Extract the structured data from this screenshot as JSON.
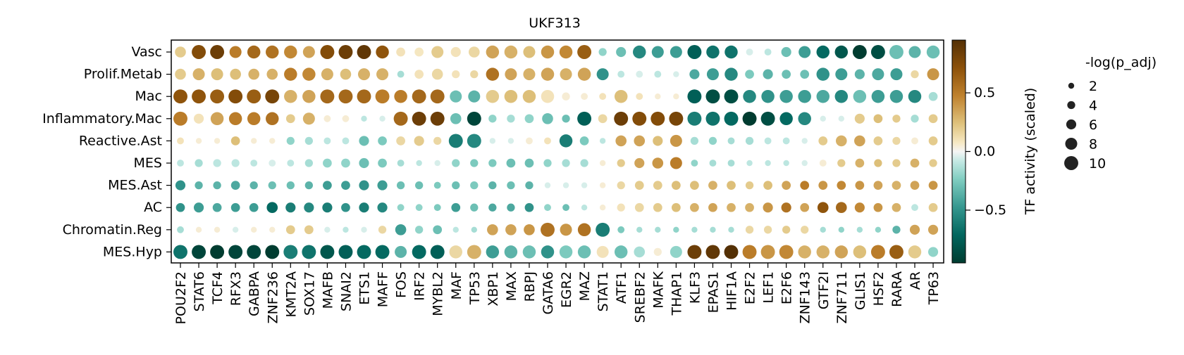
{
  "chart_data": {
    "type": "dotplot",
    "title": "UKF313",
    "rows": [
      "Vasc",
      "Prolif.Metab",
      "Mac",
      "Inflammatory.Mac",
      "Reactive.Ast",
      "MES",
      "MES.Ast",
      "AC",
      "Chromatin.Reg",
      "MES.Hyp"
    ],
    "columns": [
      "POU2F2",
      "STAT6",
      "TCF4",
      "RFX3",
      "GABPA",
      "ZNF236",
      "KMT2A",
      "SOX17",
      "MAFB",
      "SNAI2",
      "ETS1",
      "MAFF",
      "FOS",
      "IRF2",
      "MYBL2",
      "MAF",
      "TP53",
      "XBP1",
      "MAX",
      "RBPJ",
      "GATA6",
      "EGR2",
      "MAZ",
      "STAT1",
      "ATF1",
      "SREBF2",
      "MAFK",
      "THAP1",
      "KLF3",
      "EPAS1",
      "HIF1A",
      "E2F2",
      "LEF1",
      "E2F6",
      "ZNF143",
      "GTF2I",
      "ZNF711",
      "GLIS1",
      "HSF2",
      "RARA",
      "AR",
      "TP63"
    ],
    "activity": [
      [
        0.2,
        0.75,
        0.85,
        0.5,
        0.6,
        0.55,
        0.45,
        0.35,
        0.75,
        0.85,
        0.9,
        0.7,
        0.1,
        0.08,
        0.2,
        0.1,
        0.15,
        0.35,
        0.3,
        0.25,
        0.4,
        0.45,
        0.65,
        -0.2,
        -0.3,
        -0.55,
        -0.45,
        -0.45,
        -0.75,
        -0.65,
        -0.65,
        -0.05,
        -0.1,
        -0.3,
        -0.45,
        -0.7,
        -0.8,
        -0.95,
        -0.85,
        -0.3,
        -0.35,
        -0.3
      ],
      [
        0.2,
        0.3,
        0.25,
        0.25,
        0.3,
        0.3,
        0.5,
        0.45,
        0.3,
        0.25,
        0.3,
        0.3,
        -0.15,
        0.1,
        0.15,
        0.1,
        0.15,
        0.55,
        0.35,
        0.3,
        0.35,
        0.3,
        0.35,
        -0.5,
        -0.1,
        -0.05,
        -0.1,
        -0.05,
        -0.4,
        -0.45,
        -0.55,
        -0.25,
        -0.35,
        -0.3,
        -0.3,
        -0.5,
        -0.45,
        -0.35,
        -0.4,
        -0.45,
        0.15,
        0.4
      ],
      [
        0.7,
        0.7,
        0.65,
        0.75,
        0.65,
        0.8,
        0.3,
        0.35,
        0.6,
        0.6,
        0.6,
        0.5,
        0.5,
        0.6,
        0.6,
        -0.3,
        -0.35,
        0.2,
        0.25,
        0.25,
        0.1,
        0.05,
        0.05,
        0.1,
        0.25,
        0.1,
        0.05,
        0.05,
        -0.75,
        -0.85,
        -0.85,
        -0.55,
        -0.5,
        -0.45,
        -0.45,
        -0.4,
        -0.55,
        -0.3,
        -0.45,
        -0.45,
        -0.55,
        -0.15
      ],
      [
        0.5,
        0.1,
        0.35,
        0.5,
        0.5,
        0.55,
        0.2,
        0.3,
        0.05,
        0.05,
        -0.1,
        -0.05,
        0.6,
        0.85,
        0.85,
        -0.3,
        -0.9,
        -0.2,
        -0.15,
        -0.2,
        -0.3,
        -0.3,
        -0.75,
        0.15,
        0.85,
        0.75,
        0.75,
        0.8,
        -0.6,
        -0.65,
        -0.7,
        -0.95,
        -0.85,
        -0.7,
        -0.55,
        -0.05,
        -0.05,
        0.2,
        0.25,
        0.2,
        -0.15,
        0.2
      ],
      [
        0.1,
        0.05,
        0.05,
        0.25,
        0.05,
        0.05,
        -0.2,
        -0.15,
        -0.1,
        -0.1,
        -0.3,
        -0.25,
        0.15,
        0.2,
        0.15,
        -0.6,
        -0.55,
        -0.05,
        -0.05,
        0.05,
        0.1,
        -0.6,
        -0.25,
        -0.1,
        0.35,
        0.35,
        0.25,
        0.4,
        -0.15,
        -0.2,
        -0.15,
        -0.15,
        -0.1,
        -0.1,
        -0.05,
        0.2,
        0.3,
        0.35,
        0.2,
        0.15,
        0.05,
        0.2
      ],
      [
        -0.1,
        -0.15,
        -0.1,
        -0.1,
        -0.1,
        -0.05,
        -0.1,
        -0.15,
        -0.2,
        -0.2,
        -0.3,
        -0.25,
        -0.15,
        -0.1,
        -0.05,
        -0.2,
        -0.25,
        -0.25,
        -0.3,
        -0.3,
        -0.2,
        -0.15,
        -0.15,
        0.05,
        0.2,
        0.35,
        0.4,
        0.5,
        -0.2,
        -0.15,
        -0.15,
        -0.1,
        -0.1,
        -0.1,
        -0.05,
        0.05,
        0.2,
        0.3,
        0.25,
        0.2,
        0.3,
        0.2
      ],
      [
        -0.5,
        -0.35,
        -0.35,
        -0.4,
        -0.35,
        -0.3,
        -0.3,
        -0.35,
        -0.45,
        -0.45,
        -0.5,
        -0.45,
        -0.3,
        -0.3,
        -0.25,
        -0.3,
        -0.25,
        -0.35,
        -0.3,
        -0.35,
        -0.05,
        -0.05,
        -0.05,
        0.05,
        0.15,
        0.2,
        0.2,
        0.25,
        0.25,
        0.3,
        0.25,
        0.2,
        0.25,
        0.35,
        0.5,
        0.4,
        0.45,
        0.4,
        0.35,
        0.3,
        0.35,
        0.4
      ],
      [
        -0.5,
        -0.45,
        -0.4,
        -0.45,
        -0.45,
        -0.7,
        -0.6,
        -0.55,
        -0.6,
        -0.5,
        -0.6,
        -0.55,
        -0.2,
        -0.2,
        -0.25,
        -0.45,
        -0.3,
        -0.4,
        -0.4,
        -0.5,
        -0.2,
        -0.3,
        -0.1,
        0.05,
        0.1,
        0.15,
        0.2,
        0.25,
        0.3,
        0.35,
        0.3,
        0.3,
        0.4,
        0.55,
        0.35,
        0.7,
        0.6,
        0.45,
        0.4,
        0.3,
        -0.1,
        0.2
      ],
      [
        -0.15,
        0.05,
        0.05,
        -0.05,
        0.05,
        0.05,
        0.2,
        0.2,
        -0.05,
        -0.1,
        -0.05,
        0.15,
        -0.45,
        -0.2,
        -0.3,
        -0.1,
        -0.15,
        0.35,
        0.35,
        0.4,
        0.55,
        0.4,
        0.55,
        -0.6,
        -0.25,
        -0.15,
        -0.15,
        -0.2,
        -0.15,
        -0.15,
        -0.15,
        0.15,
        0.15,
        0.2,
        0.15,
        -0.15,
        -0.2,
        -0.15,
        -0.2,
        -0.35,
        0.35,
        0.35
      ],
      [
        -0.65,
        -0.9,
        -0.95,
        -0.9,
        -0.9,
        -0.95,
        -0.6,
        -0.65,
        -0.8,
        -0.75,
        -0.7,
        -0.7,
        -0.35,
        -0.7,
        -0.75,
        0.15,
        0.3,
        -0.45,
        -0.35,
        -0.3,
        -0.5,
        -0.25,
        -0.3,
        0.1,
        -0.3,
        -0.15,
        0.05,
        -0.2,
        0.85,
        0.9,
        0.95,
        0.5,
        0.4,
        0.45,
        0.3,
        0.3,
        0.35,
        0.25,
        0.5,
        0.65,
        0.2,
        -0.2
      ]
    ],
    "neglog_p_adj": [
      [
        7,
        10,
        10,
        8,
        9,
        9,
        9,
        8,
        10,
        10,
        10,
        9,
        5,
        5,
        8,
        6,
        7,
        9,
        9,
        8,
        9,
        9,
        10,
        4,
        6,
        9,
        8,
        8,
        10,
        9,
        9,
        3,
        3,
        6,
        8,
        9,
        9,
        10,
        10,
        10,
        8,
        9
      ],
      [
        7,
        8,
        8,
        7,
        7,
        7,
        9,
        9,
        8,
        7,
        8,
        8,
        3,
        5,
        7,
        4,
        4,
        9,
        8,
        8,
        9,
        8,
        9,
        8,
        3,
        3,
        3,
        2,
        6,
        8,
        9,
        5,
        6,
        5,
        5,
        9,
        8,
        6,
        8,
        8,
        4,
        8
      ],
      [
        10,
        10,
        10,
        10,
        10,
        10,
        9,
        9,
        10,
        10,
        10,
        10,
        9,
        10,
        10,
        8,
        8,
        9,
        9,
        9,
        9,
        4,
        3,
        3,
        9,
        3,
        2,
        2,
        10,
        10,
        10,
        9,
        9,
        9,
        9,
        9,
        9,
        9,
        9,
        9,
        9,
        5
      ],
      [
        10,
        6,
        9,
        9,
        9,
        9,
        5,
        8,
        3,
        3,
        2,
        2,
        10,
        10,
        10,
        7,
        10,
        4,
        4,
        5,
        7,
        4,
        10,
        5,
        10,
        10,
        10,
        10,
        10,
        10,
        10,
        10,
        10,
        9,
        9,
        2,
        2,
        6,
        5,
        4,
        4,
        5
      ],
      [
        3,
        2,
        2,
        5,
        2,
        2,
        4,
        4,
        3,
        3,
        6,
        5,
        5,
        6,
        4,
        10,
        10,
        2,
        2,
        3,
        3,
        9,
        5,
        2,
        7,
        7,
        6,
        8,
        4,
        4,
        3,
        4,
        3,
        3,
        2,
        5,
        7,
        7,
        5,
        4,
        3,
        5
      ],
      [
        3,
        4,
        4,
        4,
        3,
        3,
        3,
        4,
        5,
        5,
        6,
        5,
        3,
        2,
        2,
        4,
        4,
        4,
        5,
        5,
        4,
        4,
        4,
        2,
        4,
        6,
        7,
        8,
        3,
        3,
        3,
        2,
        2,
        2,
        2,
        3,
        4,
        5,
        4,
        4,
        5,
        4
      ],
      [
        6,
        4,
        4,
        5,
        4,
        4,
        4,
        4,
        5,
        5,
        6,
        6,
        4,
        4,
        3,
        4,
        4,
        4,
        4,
        4,
        2,
        2,
        2,
        2,
        4,
        5,
        5,
        5,
        5,
        5,
        5,
        4,
        5,
        5,
        5,
        5,
        5,
        5,
        5,
        5,
        5,
        5
      ],
      [
        5,
        6,
        5,
        5,
        5,
        7,
        6,
        6,
        6,
        5,
        6,
        6,
        3,
        3,
        3,
        5,
        4,
        4,
        4,
        5,
        3,
        3,
        2,
        2,
        4,
        5,
        5,
        5,
        5,
        5,
        5,
        5,
        6,
        6,
        5,
        7,
        7,
        6,
        5,
        5,
        3,
        5
      ],
      [
        3,
        2,
        2,
        2,
        2,
        2,
        5,
        5,
        2,
        2,
        2,
        4,
        7,
        4,
        5,
        2,
        2,
        7,
        7,
        7,
        10,
        8,
        9,
        10,
        3,
        2,
        2,
        2,
        2,
        2,
        2,
        4,
        4,
        4,
        4,
        2,
        2,
        2,
        2,
        4,
        6,
        6
      ],
      [
        10,
        10,
        10,
        10,
        10,
        10,
        10,
        10,
        10,
        10,
        10,
        10,
        8,
        10,
        10,
        9,
        10,
        9,
        9,
        9,
        9,
        9,
        9,
        8,
        9,
        7,
        4,
        8,
        10,
        10,
        10,
        10,
        10,
        10,
        9,
        9,
        9,
        9,
        10,
        10,
        9,
        6
      ]
    ],
    "colorbar": {
      "label": "TF activity (scaled)",
      "ticks": [
        "0.5",
        "0.0",
        "−0.5"
      ],
      "range": [
        -0.95,
        0.95
      ],
      "colormap": "BrBG (reversed)"
    },
    "size_legend": {
      "title": "-log(p_adj)",
      "values": [
        2,
        4,
        6,
        8,
        10
      ]
    }
  }
}
